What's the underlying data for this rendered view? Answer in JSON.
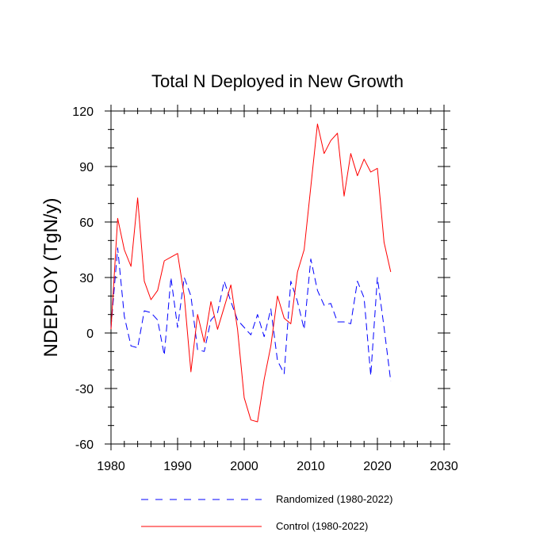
{
  "chart_data": {
    "type": "line",
    "title": "Total N Deployed in New Growth",
    "xlabel": "",
    "ylabel": "NDEPLOY  (TgN/y)",
    "xlim": [
      1980,
      2030
    ],
    "ylim": [
      -60,
      120
    ],
    "xticks": [
      1980,
      1990,
      2000,
      2010,
      2020,
      2030
    ],
    "xtick_labels": [
      "1980",
      "1990",
      "2000",
      "2010",
      "2020",
      "2030"
    ],
    "yticks": [
      -60,
      -30,
      0,
      30,
      60,
      90,
      120
    ],
    "ytick_labels": [
      "-60",
      "-30",
      "0",
      "30",
      "60",
      "90",
      "120"
    ],
    "legend_position": "bottom",
    "x": [
      1980,
      1981,
      1982,
      1983,
      1984,
      1985,
      1986,
      1987,
      1988,
      1989,
      1990,
      1991,
      1992,
      1993,
      1994,
      1995,
      1996,
      1997,
      1998,
      1999,
      2000,
      2001,
      2002,
      2003,
      2004,
      2005,
      2006,
      2007,
      2008,
      2009,
      2010,
      2011,
      2012,
      2013,
      2014,
      2015,
      2016,
      2017,
      2018,
      2019,
      2020,
      2021,
      2022
    ],
    "series": [
      {
        "name": "Randomized (1980-2022)",
        "legend_label": "Randomized (1980-2022)",
        "color": "#0000ff",
        "dash": "dashed",
        "values": [
          3,
          46,
          9,
          -7,
          -8,
          12,
          11,
          7,
          -12,
          30,
          3,
          30,
          20,
          -9,
          -10,
          7,
          11,
          28,
          17,
          7,
          3,
          -1,
          10,
          -2,
          13,
          -15,
          -22,
          28,
          17,
          2,
          40,
          23,
          15,
          16,
          6,
          6,
          5,
          28,
          19,
          -23,
          30,
          3,
          -26
        ]
      },
      {
        "name": "Control (1980-2022)",
        "legend_label": "Control (1980-2022)",
        "color": "#ff0000",
        "dash": "solid",
        "values": [
          2,
          62,
          45,
          36,
          73,
          28,
          18,
          23,
          39,
          41,
          43,
          20,
          -21,
          10,
          -5,
          17,
          2,
          14,
          26,
          2,
          -35,
          -47,
          -48,
          -25,
          -7,
          20,
          8,
          5,
          33,
          45,
          79,
          113,
          97,
          104,
          108,
          74,
          97,
          85,
          94,
          87,
          89,
          49,
          33
        ]
      }
    ]
  }
}
